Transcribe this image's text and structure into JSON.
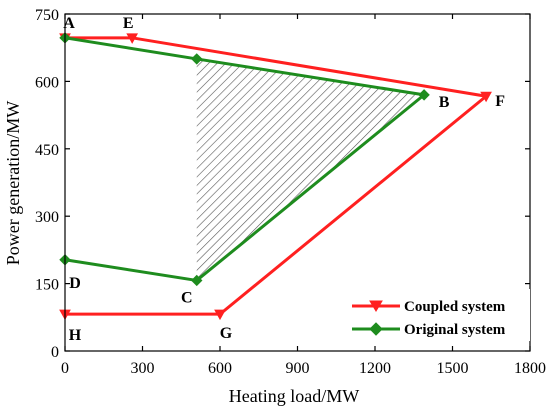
{
  "chart_data": {
    "type": "line",
    "xlabel": "Heating load/MW",
    "ylabel": "Power generation/MW",
    "xlim": [
      0,
      1800
    ],
    "ylim": [
      0,
      750
    ],
    "xticks": [
      "0",
      "300",
      "600",
      "900",
      "1200",
      "1500",
      "1800"
    ],
    "yticks": [
      "0",
      "150",
      "300",
      "450",
      "600",
      "750"
    ],
    "grid": false,
    "legend_position": "bottom-right",
    "series": [
      {
        "name": "Coupled system",
        "color": "#ff2020",
        "marker": "triangle-down",
        "points": [
          {
            "label": "A",
            "x": 0,
            "y": 697
          },
          {
            "label": "E",
            "x": 260,
            "y": 697
          },
          {
            "label": "F",
            "x": 1630,
            "y": 567
          },
          {
            "label": "G",
            "x": 600,
            "y": 82
          },
          {
            "label": "H",
            "x": 0,
            "y": 82
          }
        ],
        "closed": false
      },
      {
        "name": "Original system",
        "color": "#1e8c1e",
        "marker": "diamond",
        "points": [
          {
            "label": "A",
            "x": 0,
            "y": 697
          },
          {
            "label": "",
            "x": 510,
            "y": 650
          },
          {
            "label": "B",
            "x": 1390,
            "y": 570
          },
          {
            "label": "C",
            "x": 510,
            "y": 157
          },
          {
            "label": "D",
            "x": 0,
            "y": 203
          }
        ],
        "closed": false
      }
    ],
    "shaded_region": {
      "pattern": "hatched",
      "points": [
        [
          510,
          650
        ],
        [
          1390,
          570
        ],
        [
          510,
          157
        ]
      ]
    },
    "point_labels": [
      {
        "text": "A",
        "x": 0,
        "y": 697,
        "dx": 4,
        "dy": -10
      },
      {
        "text": "E",
        "x": 260,
        "y": 697,
        "dx": -4,
        "dy": -10
      },
      {
        "text": "F",
        "x": 1630,
        "y": 567,
        "dx": 14,
        "dy": 10
      },
      {
        "text": "B",
        "x": 1390,
        "y": 570,
        "dx": 20,
        "dy": 12
      },
      {
        "text": "C",
        "x": 510,
        "y": 157,
        "dx": -10,
        "dy": 22
      },
      {
        "text": "D",
        "x": 0,
        "y": 203,
        "dx": 10,
        "dy": 28
      },
      {
        "text": "G",
        "x": 600,
        "y": 82,
        "dx": 6,
        "dy": 24
      },
      {
        "text": "H",
        "x": 0,
        "y": 82,
        "dx": 10,
        "dy": 26
      }
    ]
  }
}
